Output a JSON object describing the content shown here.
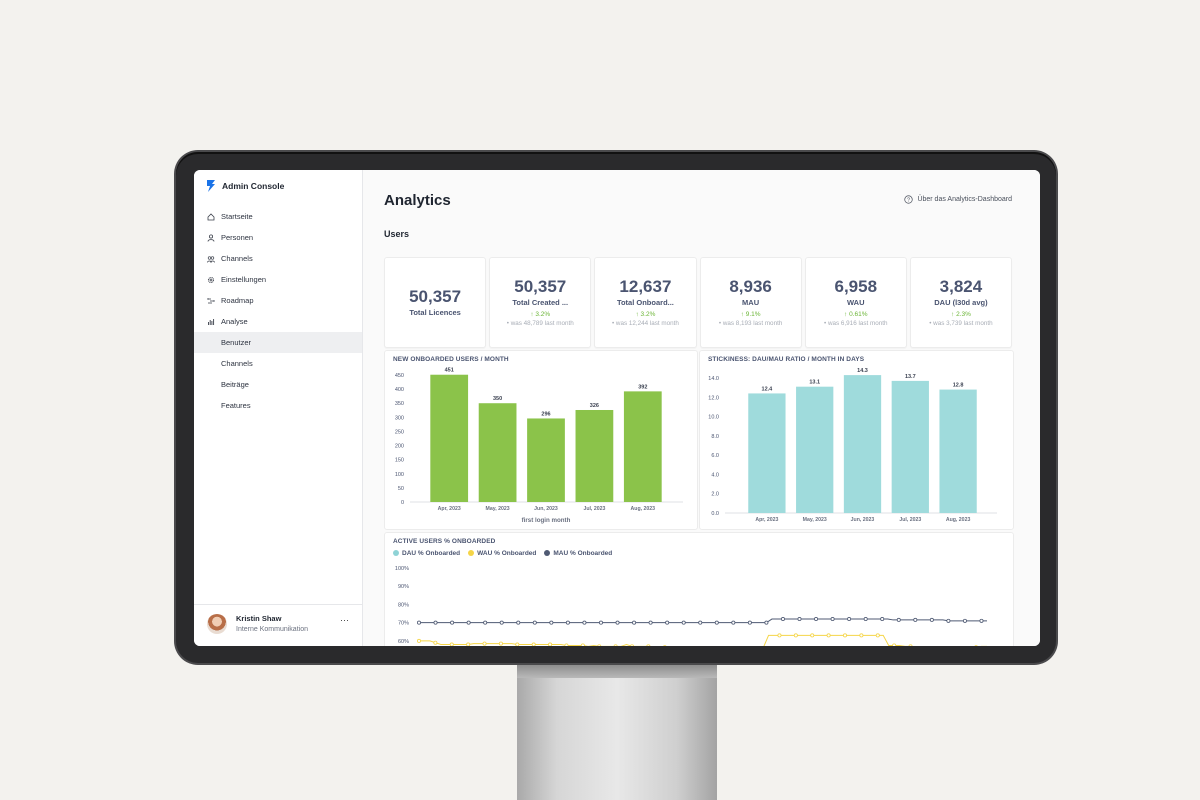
{
  "app": {
    "title": "Admin Console"
  },
  "nav": {
    "items": [
      {
        "label": "Startseite",
        "icon": "home-icon"
      },
      {
        "label": "Personen",
        "icon": "person-icon"
      },
      {
        "label": "Channels",
        "icon": "people-icon"
      },
      {
        "label": "Einstellungen",
        "icon": "gear-icon"
      },
      {
        "label": "Roadmap",
        "icon": "roadmap-icon"
      },
      {
        "label": "Analyse",
        "icon": "bar-chart-icon"
      }
    ],
    "sub_items": [
      {
        "label": "Benutzer",
        "active": true
      },
      {
        "label": "Channels"
      },
      {
        "label": "Beiträge"
      },
      {
        "label": "Features"
      }
    ]
  },
  "user": {
    "name": "Kristin Shaw",
    "role": "Interne Kommunikation",
    "more": "···"
  },
  "page": {
    "title": "Analytics",
    "about_link": "Über das Analytics-Dashboard",
    "section": "Users"
  },
  "kpis": [
    {
      "value": "50,357",
      "label": "Total Licences",
      "delta": "",
      "was": ""
    },
    {
      "value": "50,357",
      "label": "Total Created ...",
      "delta": "3.2%",
      "was": "• was 48,789 last month"
    },
    {
      "value": "12,637",
      "label": "Total Onboard...",
      "delta": "3.2%",
      "was": "• was 12,244 last month"
    },
    {
      "value": "8,936",
      "label": "MAU",
      "delta": "9.1%",
      "was": "• was 8,193 last month"
    },
    {
      "value": "6,958",
      "label": "WAU",
      "delta": "0.61%",
      "was": "• was 6,916 last month"
    },
    {
      "value": "3,824",
      "label": "DAU (l30d avg)",
      "delta": "2.3%",
      "was": "• was 3,739 last month"
    }
  ],
  "colors": {
    "green_bar": "#8bc34a",
    "teal_bar": "#9fdbdc",
    "dau": "#8fd3d6",
    "wau": "#f5d547",
    "mau": "#4f5a73",
    "positive": "#6bb536"
  },
  "chart_data": [
    {
      "type": "bar",
      "title": "NEW ONBOARDED USERS / MONTH",
      "xlabel": "first login month",
      "categories": [
        "Apr, 2023",
        "May, 2023",
        "Jun, 2023",
        "Jul, 2023",
        "Aug, 2023"
      ],
      "values": [
        451,
        350,
        296,
        326,
        392
      ],
      "ylim": [
        0,
        450
      ],
      "yticks": [
        0,
        50,
        100,
        150,
        200,
        250,
        300,
        350,
        400,
        450
      ]
    },
    {
      "type": "bar",
      "title": "STICKINESS: DAU/MAU RATIO / MONTH IN DAYS",
      "categories": [
        "Apr, 2023",
        "May, 2023",
        "Jun, 2023",
        "Jul, 2023",
        "Aug, 2023"
      ],
      "values": [
        12.4,
        13.1,
        14.3,
        13.7,
        12.8
      ],
      "ylim": [
        0,
        14
      ],
      "yticks": [
        "0.0",
        "2.0",
        "4.0",
        "6.0",
        "8.0",
        "10.0",
        "12.0",
        "14.0"
      ]
    },
    {
      "type": "line",
      "title": "ACTIVE USERS % ONBOARDED",
      "yticks": [
        "60%",
        "70%",
        "80%",
        "90%",
        "100%"
      ],
      "ylim": [
        55,
        100
      ],
      "series": [
        {
          "name": "DAU % Onboarded",
          "values": []
        },
        {
          "name": "WAU % Onboarded",
          "values": [
            60,
            60,
            60,
            59,
            58,
            58,
            58,
            58,
            58,
            58,
            58.5,
            58.5,
            58.5,
            58.5,
            58.5,
            58.5,
            58.5,
            58.5,
            58,
            58,
            58,
            58,
            58,
            58,
            58,
            58,
            58,
            57.5,
            57.5,
            57.5,
            57.5,
            57,
            57.5,
            57,
            57,
            57,
            57,
            57,
            58,
            57,
            57,
            57,
            57,
            56.5,
            56.5,
            56.5,
            56.5,
            56.5,
            56,
            56,
            56,
            56,
            56,
            56,
            56,
            56,
            56,
            56,
            56,
            56,
            56,
            55,
            56,
            56,
            63,
            63,
            63,
            63,
            63,
            63,
            63,
            63,
            63,
            63,
            63,
            63,
            63,
            63,
            63,
            63,
            63,
            63,
            63,
            63,
            63,
            63,
            57.5,
            57.5,
            57.5,
            57,
            57,
            56.5,
            56.5,
            56,
            56,
            56,
            56,
            56,
            56,
            56,
            56.5,
            56.5,
            56.5,
            57,
            57
          ]
        },
        {
          "name": "MAU % Onboarded",
          "values": [
            70,
            70,
            70,
            70,
            70,
            70,
            70,
            70,
            70,
            70,
            70,
            70,
            70,
            70,
            70,
            70,
            70,
            70,
            70,
            70,
            70,
            70,
            70,
            70,
            70,
            70,
            70,
            70,
            70,
            70,
            70,
            70,
            70,
            70,
            70,
            70,
            70,
            70,
            70,
            70,
            70,
            70,
            70,
            70,
            70,
            70,
            70,
            70,
            70,
            70,
            70,
            70,
            70,
            70,
            70,
            70,
            70,
            70,
            70,
            70,
            70,
            70,
            70,
            70,
            72,
            72,
            72,
            72,
            72,
            72,
            72,
            72,
            72,
            72,
            72,
            72,
            72,
            72,
            72,
            72,
            72,
            72,
            72,
            72,
            72,
            72,
            71.5,
            71.5,
            71.5,
            71.5,
            71.5,
            71.5,
            71.5,
            71.5,
            71.5,
            71.5,
            71,
            71,
            71,
            71,
            71,
            71,
            71,
            71
          ]
        }
      ]
    }
  ]
}
